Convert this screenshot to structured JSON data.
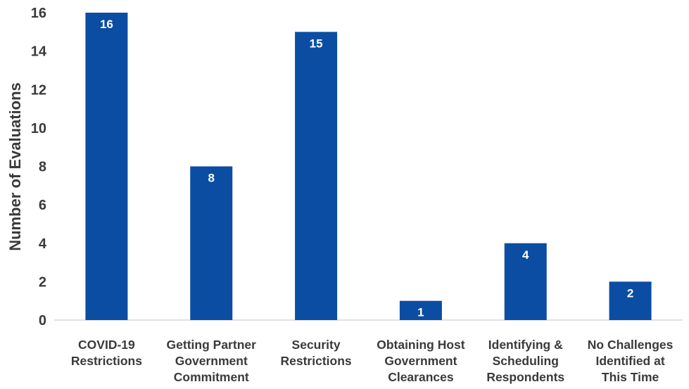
{
  "chart_data": {
    "type": "bar",
    "title": "",
    "xlabel": "",
    "ylabel": "Number of  Evaluations",
    "ylim": [
      0,
      16
    ],
    "yticks": [
      0,
      2,
      4,
      6,
      8,
      10,
      12,
      14,
      16
    ],
    "grid": false,
    "legend": "none",
    "bar_color": "#0b4da2",
    "categories": [
      [
        "COVID-19",
        "Restrictions"
      ],
      [
        "Getting Partner",
        "Government",
        "Commitment"
      ],
      [
        "Security",
        "Restrictions"
      ],
      [
        "Obtaining Host",
        "Government",
        "Clearances"
      ],
      [
        "Identifying &",
        "Scheduling",
        "Respondents"
      ],
      [
        "No Challenges",
        "Identified at",
        "This Time"
      ]
    ],
    "values": [
      16,
      8,
      15,
      1,
      4,
      2
    ],
    "data_labels": [
      "16",
      "8",
      "15",
      "1",
      "4",
      "2"
    ]
  }
}
